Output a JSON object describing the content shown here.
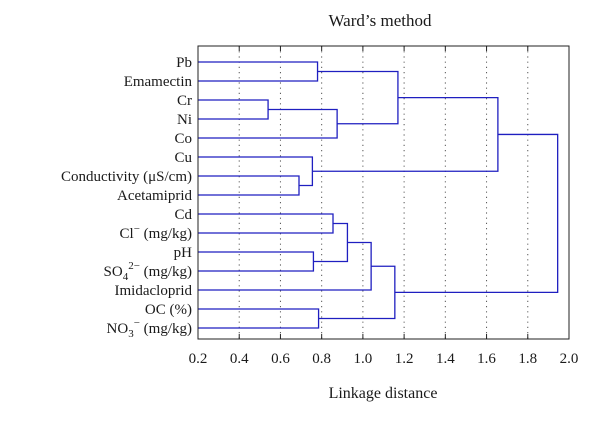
{
  "chart_data": {
    "type": "dendrogram",
    "title": "Ward’s method",
    "xlabel": "Linkage distance",
    "xlim": [
      0.2,
      2.0
    ],
    "xticks": [
      0.2,
      0.4,
      0.6,
      0.8,
      1.0,
      1.2,
      1.4,
      1.6,
      1.8,
      2.0
    ],
    "xtick_labels": [
      "0.2",
      "0.4",
      "0.6",
      "0.8",
      "1.0",
      "1.2",
      "1.4",
      "1.6",
      "1.8",
      "2.0"
    ],
    "grid": "vertical dotted",
    "leaves": [
      {
        "label": "Pb",
        "sup": ""
      },
      {
        "label": "Emamectin",
        "sup": ""
      },
      {
        "label": "Cr",
        "sup": ""
      },
      {
        "label": "Ni",
        "sup": ""
      },
      {
        "label": "Co",
        "sup": ""
      },
      {
        "label": "Cu",
        "sup": ""
      },
      {
        "label": "Conductivity (μS/cm)",
        "sup": ""
      },
      {
        "label": "Acetamiprid",
        "sup": ""
      },
      {
        "label": "Cd",
        "sup": ""
      },
      {
        "label": "Cl (mg/kg)",
        "pre": "Cl",
        "sup": "−",
        "post": " (mg/kg)"
      },
      {
        "label": "pH",
        "sup": ""
      },
      {
        "label": "SO4 2− (mg/kg)",
        "pre": "SO",
        "sub": "4",
        "sup": "2−",
        "post": " (mg/kg)"
      },
      {
        "label": "Imidacloprid",
        "sup": ""
      },
      {
        "label": "OC (%)",
        "sup": ""
      },
      {
        "label": "NO3 − (mg/kg)",
        "pre": "NO",
        "sub": "3",
        "sup": "−",
        "post": " (mg/kg)"
      }
    ],
    "merges": [
      {
        "a": "L2",
        "b": "L3",
        "height": 0.54
      },
      {
        "a": "L6",
        "b": "L7",
        "height": 0.69
      },
      {
        "a": "L5",
        "b": "M1",
        "height": 0.755
      },
      {
        "a": "L10",
        "b": "L11",
        "height": 0.76
      },
      {
        "a": "L0",
        "b": "L1",
        "height": 0.78
      },
      {
        "a": "L13",
        "b": "L14",
        "height": 0.785
      },
      {
        "a": "L8",
        "b": "L9",
        "height": 0.855
      },
      {
        "a": "L4",
        "b": "M0",
        "height": 0.875
      },
      {
        "a": "M6",
        "b": "M3",
        "height": 0.925
      },
      {
        "a": "M8",
        "b": "L12",
        "height": 1.04
      },
      {
        "a": "M9",
        "b": "M5",
        "height": 1.155
      },
      {
        "a": "M4",
        "b": "M7",
        "height": 1.17
      },
      {
        "a": "M11",
        "b": "M2",
        "height": 1.655
      },
      {
        "a": "M12",
        "b": "M10",
        "height": 1.945
      }
    ],
    "colors": {
      "branches": "#1f1fc0"
    }
  }
}
